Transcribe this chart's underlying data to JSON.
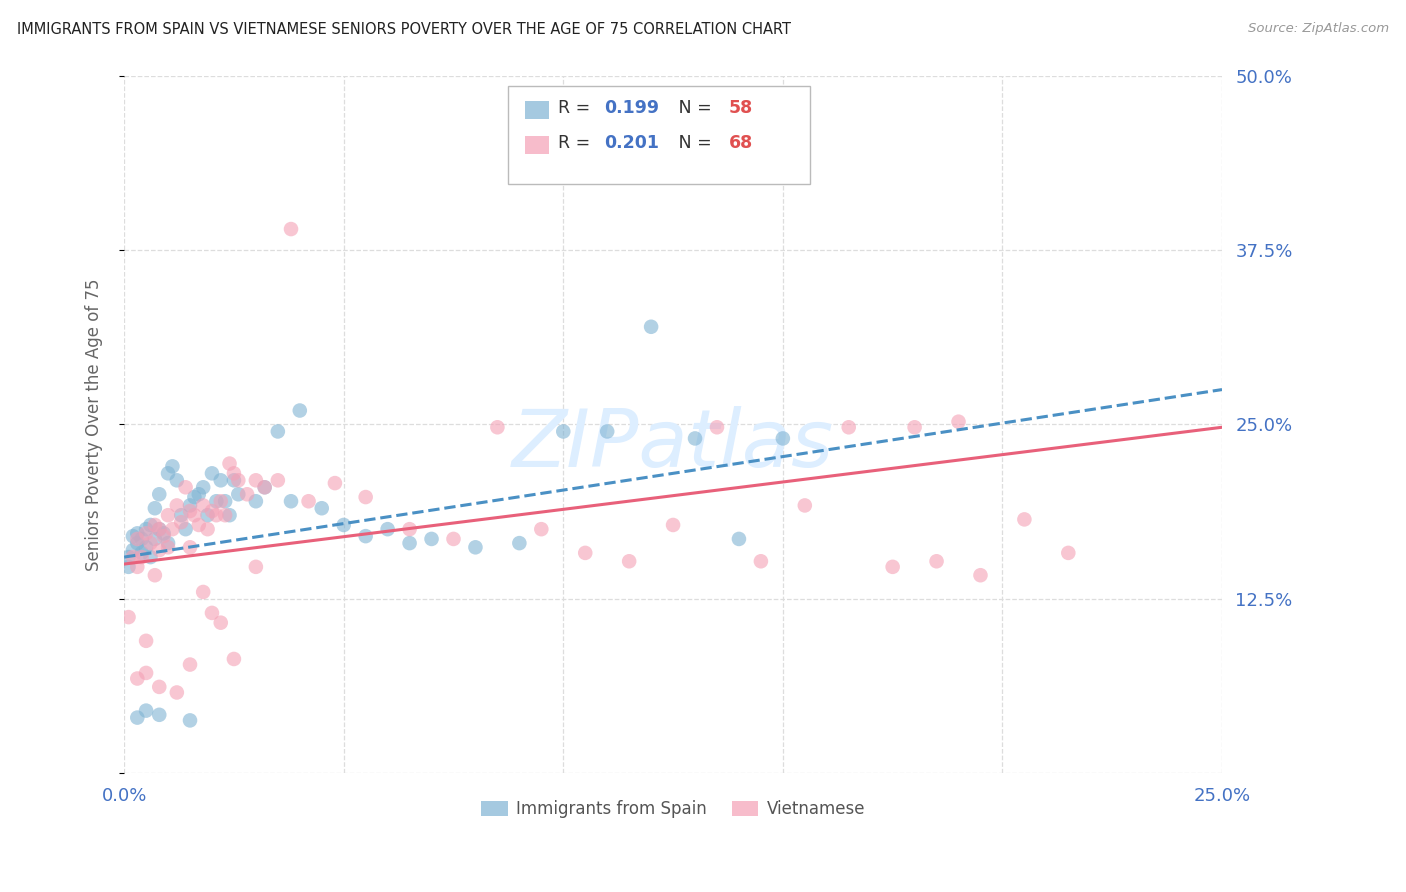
{
  "title": "IMMIGRANTS FROM SPAIN VS VIETNAMESE SENIORS POVERTY OVER THE AGE OF 75 CORRELATION CHART",
  "source": "Source: ZipAtlas.com",
  "ylabel": "Seniors Poverty Over the Age of 75",
  "xlim": [
    0.0,
    0.25
  ],
  "ylim": [
    0.0,
    0.5
  ],
  "xtick_vals": [
    0.0,
    0.05,
    0.1,
    0.15,
    0.2,
    0.25
  ],
  "xtick_labels": [
    "0.0%",
    "",
    "",
    "",
    "",
    "25.0%"
  ],
  "ytick_vals": [
    0.0,
    0.125,
    0.25,
    0.375,
    0.5
  ],
  "ytick_labels_right": [
    "",
    "12.5%",
    "25.0%",
    "37.5%",
    "50.0%"
  ],
  "spain_color": "#7fb3d3",
  "viet_color": "#f4a0b5",
  "spain_line_color": "#4a90c4",
  "viet_line_color": "#e8607a",
  "tick_color": "#4472c4",
  "axis_label_color": "#666666",
  "title_color": "#222222",
  "grid_color": "#dddddd",
  "background_color": "#ffffff",
  "watermark_color": "#ddeeff",
  "legend_R_color": "#4472c4",
  "legend_N_color": "#e05050",
  "spain_R": "0.199",
  "spain_N": "58",
  "viet_R": "0.201",
  "viet_N": "68",
  "spain_line_x": [
    0.0,
    0.25
  ],
  "spain_line_y": [
    0.155,
    0.275
  ],
  "viet_line_x": [
    0.0,
    0.25
  ],
  "viet_line_y": [
    0.15,
    0.248
  ],
  "spain_scatter_x": [
    0.001,
    0.001,
    0.002,
    0.002,
    0.003,
    0.003,
    0.004,
    0.004,
    0.005,
    0.005,
    0.006,
    0.006,
    0.007,
    0.007,
    0.008,
    0.008,
    0.009,
    0.01,
    0.01,
    0.011,
    0.012,
    0.013,
    0.014,
    0.015,
    0.016,
    0.017,
    0.018,
    0.019,
    0.02,
    0.021,
    0.022,
    0.023,
    0.024,
    0.025,
    0.026,
    0.03,
    0.032,
    0.035,
    0.038,
    0.04,
    0.045,
    0.05,
    0.055,
    0.06,
    0.065,
    0.07,
    0.08,
    0.09,
    0.1,
    0.11,
    0.12,
    0.13,
    0.14,
    0.15,
    0.003,
    0.005,
    0.008,
    0.015
  ],
  "spain_scatter_y": [
    0.155,
    0.148,
    0.17,
    0.16,
    0.165,
    0.172,
    0.158,
    0.168,
    0.175,
    0.162,
    0.178,
    0.155,
    0.19,
    0.168,
    0.2,
    0.175,
    0.172,
    0.215,
    0.165,
    0.22,
    0.21,
    0.185,
    0.175,
    0.192,
    0.198,
    0.2,
    0.205,
    0.185,
    0.215,
    0.195,
    0.21,
    0.195,
    0.185,
    0.21,
    0.2,
    0.195,
    0.205,
    0.245,
    0.195,
    0.26,
    0.19,
    0.178,
    0.17,
    0.175,
    0.165,
    0.168,
    0.162,
    0.165,
    0.245,
    0.245,
    0.32,
    0.24,
    0.168,
    0.24,
    0.04,
    0.045,
    0.042,
    0.038
  ],
  "viet_scatter_x": [
    0.001,
    0.002,
    0.003,
    0.003,
    0.004,
    0.005,
    0.005,
    0.006,
    0.007,
    0.007,
    0.008,
    0.008,
    0.009,
    0.01,
    0.01,
    0.011,
    0.012,
    0.013,
    0.014,
    0.015,
    0.015,
    0.016,
    0.017,
    0.018,
    0.019,
    0.02,
    0.021,
    0.022,
    0.023,
    0.024,
    0.025,
    0.026,
    0.028,
    0.03,
    0.032,
    0.035,
    0.038,
    0.042,
    0.048,
    0.055,
    0.065,
    0.075,
    0.085,
    0.095,
    0.105,
    0.115,
    0.125,
    0.135,
    0.145,
    0.155,
    0.165,
    0.175,
    0.185,
    0.195,
    0.205,
    0.215,
    0.18,
    0.19,
    0.003,
    0.005,
    0.008,
    0.012,
    0.015,
    0.018,
    0.02,
    0.022,
    0.025,
    0.03
  ],
  "viet_scatter_y": [
    0.112,
    0.155,
    0.148,
    0.168,
    0.155,
    0.172,
    0.095,
    0.165,
    0.178,
    0.142,
    0.16,
    0.175,
    0.17,
    0.162,
    0.185,
    0.175,
    0.192,
    0.18,
    0.205,
    0.188,
    0.162,
    0.185,
    0.178,
    0.192,
    0.175,
    0.188,
    0.185,
    0.195,
    0.185,
    0.222,
    0.215,
    0.21,
    0.2,
    0.21,
    0.205,
    0.21,
    0.39,
    0.195,
    0.208,
    0.198,
    0.175,
    0.168,
    0.248,
    0.175,
    0.158,
    0.152,
    0.178,
    0.248,
    0.152,
    0.192,
    0.248,
    0.148,
    0.152,
    0.142,
    0.182,
    0.158,
    0.248,
    0.252,
    0.068,
    0.072,
    0.062,
    0.058,
    0.078,
    0.13,
    0.115,
    0.108,
    0.082,
    0.148
  ]
}
